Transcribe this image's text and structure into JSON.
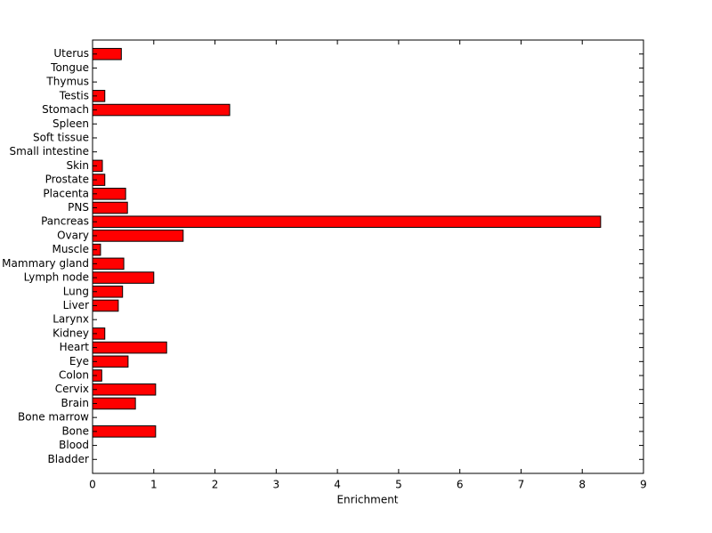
{
  "chart_data": {
    "type": "barh",
    "xlabel": "Enrichment",
    "categories": [
      "Bladder",
      "Blood",
      "Bone",
      "Bone marrow",
      "Brain",
      "Cervix",
      "Colon",
      "Eye",
      "Heart",
      "Kidney",
      "Larynx",
      "Liver",
      "Lung",
      "Lymph node",
      "Mammary gland",
      "Muscle",
      "Ovary",
      "Pancreas",
      "PNS",
      "Placenta",
      "Prostate",
      "Skin",
      "Small intestine",
      "Soft tissue",
      "Spleen",
      "Stomach",
      "Testis",
      "Thymus",
      "Tongue",
      "Uterus"
    ],
    "values": [
      0,
      0,
      1.03,
      0,
      0.7,
      1.03,
      0.15,
      0.58,
      1.21,
      0.2,
      0,
      0.42,
      0.49,
      1.0,
      0.51,
      0.13,
      1.48,
      8.3,
      0.57,
      0.54,
      0.2,
      0.16,
      0,
      0,
      0,
      2.24,
      0.2,
      0,
      0,
      0.47
    ],
    "color": "#ff0000",
    "xlim": [
      0,
      9
    ],
    "xticks": [
      0,
      1,
      2,
      3,
      4,
      5,
      6,
      7,
      8,
      9
    ]
  }
}
